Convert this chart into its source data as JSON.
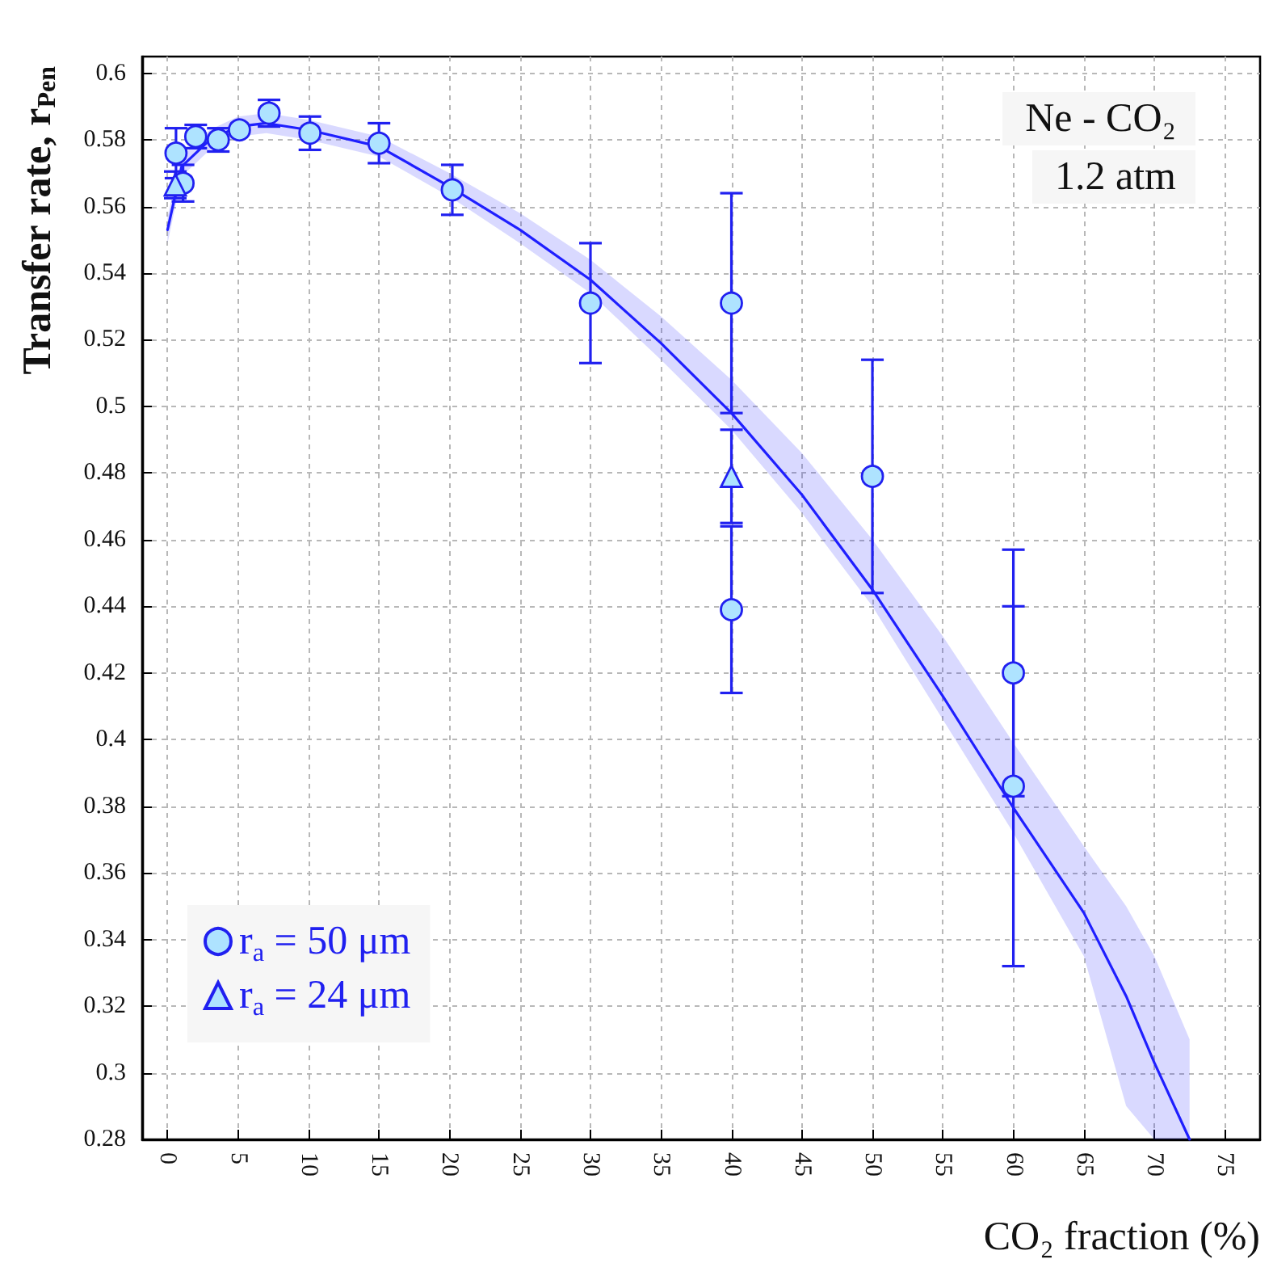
{
  "chart_data": {
    "type": "scatter",
    "xlabel": "CO₂ fraction (%)",
    "ylabel": "Transfer rate, r$_{Pen}$",
    "annotations": [
      "Ne - CO₂",
      "1.2 atm"
    ],
    "xlim": [
      -1.8,
      77.5
    ],
    "ylim": [
      0.28,
      0.605
    ],
    "xticks": [
      0,
      5,
      10,
      15,
      20,
      25,
      30,
      35,
      40,
      45,
      50,
      55,
      60,
      65,
      70,
      75
    ],
    "yticks": [
      0.28,
      0.3,
      0.32,
      0.34,
      0.36,
      0.38,
      0.4,
      0.42,
      0.44,
      0.46,
      0.48,
      0.5,
      0.52,
      0.54,
      0.56,
      0.58,
      0.6
    ],
    "grid": true,
    "legend": "bottom left",
    "series": [
      {
        "name": "r$_{a}$ = 50 μm",
        "marker": "circle",
        "color": "#aee3ff",
        "x": [
          0.6,
          1.1,
          2.0,
          3.6,
          5.1,
          7.2,
          10.1,
          15.0,
          20.2,
          30.0,
          40.0,
          40.0,
          50.0,
          60.0,
          60.0
        ],
        "values": [
          0.576,
          0.567,
          0.581,
          0.58,
          0.583,
          0.588,
          0.582,
          0.579,
          0.565,
          0.531,
          0.531,
          0.439,
          0.479,
          0.42,
          0.386
        ],
        "errors": [
          0.0075,
          0.0055,
          0.0035,
          0.0035,
          null,
          0.004,
          0.005,
          0.006,
          0.0075,
          0.018,
          0.033,
          0.025,
          0.035,
          [
            0.383,
            0.457
          ],
          [
            0.332,
            0.44
          ]
        ]
      },
      {
        "name": "r$_{a}$ = 24 μm",
        "marker": "triangle",
        "color": "#aee3ff",
        "x": [
          0.55,
          40.0
        ],
        "values": [
          0.5665,
          0.479
        ],
        "errors": [
          0.004,
          0.014
        ]
      },
      {
        "type": "line",
        "marker": "none",
        "line_style": "solid",
        "color": "#1f1fff",
        "x": [
          0,
          1,
          3,
          5,
          7,
          10,
          15,
          20,
          25,
          30,
          35,
          40,
          45,
          50,
          55,
          60,
          65,
          68,
          70,
          72.5
        ],
        "values": [
          0.553,
          0.572,
          0.58,
          0.584,
          0.585,
          0.583,
          0.578,
          0.566,
          0.553,
          0.538,
          0.519,
          0.498,
          0.4735,
          0.445,
          0.413,
          0.3795,
          0.348,
          0.323,
          0.303,
          0.28
        ],
        "lower": [
          0.549,
          0.569,
          0.577,
          0.581,
          0.582,
          0.58,
          0.575,
          0.563,
          0.549,
          0.534,
          0.514,
          0.493,
          0.468,
          0.44,
          0.406,
          0.372,
          0.335,
          0.29,
          0.28,
          0.28
        ],
        "upper": [
          0.557,
          0.575,
          0.583,
          0.587,
          0.588,
          0.586,
          0.581,
          0.57,
          0.558,
          0.544,
          0.527,
          0.508,
          0.486,
          0.46,
          0.431,
          0.399,
          0.368,
          0.35,
          0.335,
          0.31
        ]
      }
    ]
  }
}
